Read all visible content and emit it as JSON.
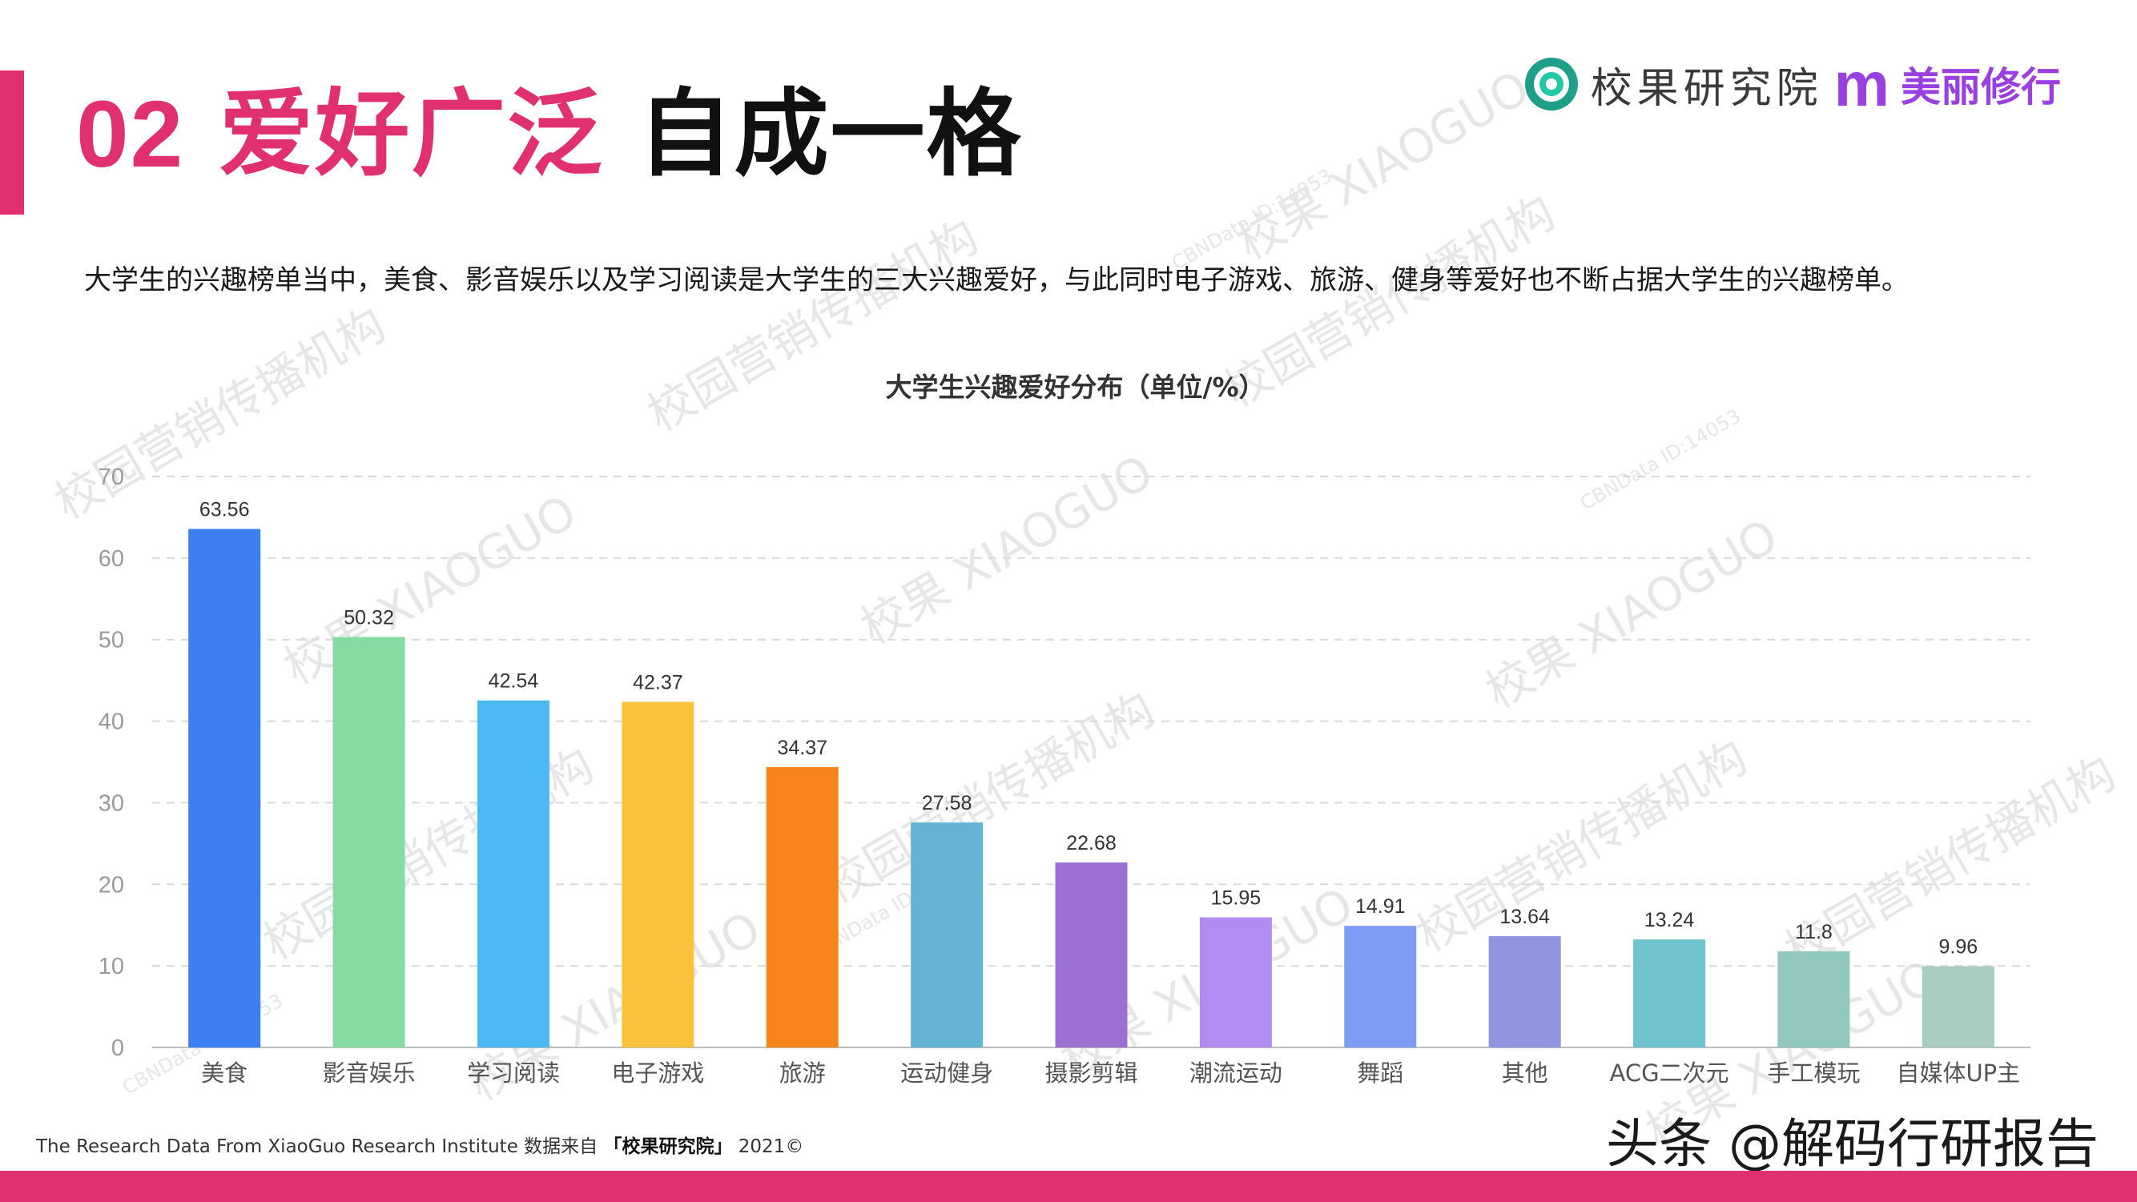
{
  "header": {
    "number": "02",
    "title_pink": "爱好广泛",
    "title_dark": "自成一格"
  },
  "brand": {
    "name": "校果研究院",
    "partner_mark": "m",
    "partner": "美丽修行"
  },
  "subtitle": "大学生的兴趣榜单当中，美食、影音娱乐以及学习阅读是大学生的三大兴趣爱好，与此同时电子游戏、旅游、健身等爱好也不断占据大学生的兴趣榜单。",
  "footer": {
    "source_en": "The Research Data From XiaoGuo Research Institute 数据来自",
    "source_name": "「校果研究院」",
    "year": "2021©"
  },
  "credit": "头条 @解码行研报告",
  "watermark": {
    "a": "校果 XIAOGUO",
    "b": "校园营销传播机构",
    "c": "CBNData ID:14053"
  },
  "chart_data": {
    "type": "bar",
    "title": "大学生兴趣爱好分布（单位/%）",
    "categories": [
      "美食",
      "影音娱乐",
      "学习阅读",
      "电子游戏",
      "旅游",
      "运动健身",
      "摄影剪辑",
      "潮流运动",
      "舞蹈",
      "其他",
      "ACG二次元",
      "手工模玩",
      "自媒体UP主"
    ],
    "values": [
      63.56,
      50.32,
      42.54,
      42.37,
      34.37,
      27.58,
      22.68,
      15.95,
      14.91,
      13.64,
      13.24,
      11.8,
      9.96
    ],
    "value_labels": [
      "63.56",
      "50.32",
      "42.54",
      "42.37",
      "34.37",
      "27.58",
      "22.68",
      "15.95",
      "14.91",
      "13.64",
      "13.24",
      "11.8",
      "9.96"
    ],
    "colors": [
      "#3c7ff5",
      "#84dca3",
      "#4cb8f4",
      "#fcc23c",
      "#f8841b",
      "#63b3d5",
      "#9b70d2",
      "#b18df2",
      "#7d9df5",
      "#8f96df",
      "#6fc3cf",
      "#93c8be",
      "#a9cbc1"
    ],
    "yticks": [
      "0",
      "10",
      "20",
      "30",
      "40",
      "50",
      "60",
      "70"
    ],
    "ylim": [
      0,
      70
    ],
    "grid": true,
    "xlabel": "",
    "ylabel": ""
  }
}
